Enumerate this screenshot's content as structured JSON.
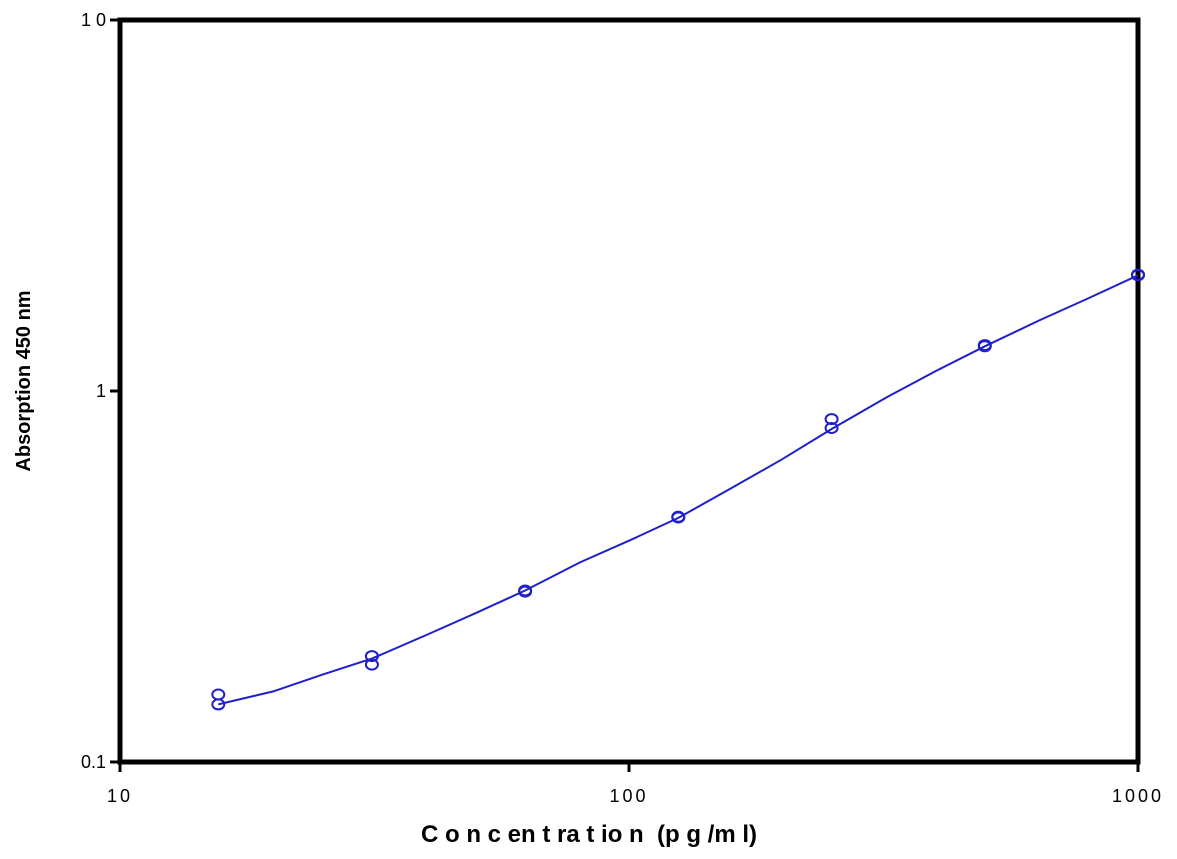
{
  "chart_data": {
    "type": "scatter",
    "title": "",
    "xlabel": "C o n c en t ra t io n  (p g /m l)",
    "ylabel": "Absorption 450 nm",
    "x_scale": "log",
    "y_scale": "log",
    "xlim": [
      10,
      1000
    ],
    "ylim": [
      0.1,
      10
    ],
    "grid": false,
    "legend": "none",
    "x_ticks": [
      {
        "value": 10,
        "label": "10"
      },
      {
        "value": 100,
        "label": "100"
      },
      {
        "value": 1000,
        "label": "1000"
      }
    ],
    "y_ticks": [
      {
        "value": 0.1,
        "label": "0.1"
      },
      {
        "value": 1,
        "label": "1"
      },
      {
        "value": 10,
        "label": "1 0"
      }
    ],
    "series": [
      {
        "kind": "points",
        "marker": "circle-open",
        "x": [
          15.6,
          15.6,
          31.25,
          31.25,
          62.5,
          62.5,
          125,
          125,
          250,
          250,
          500,
          500,
          1000,
          1000
        ],
        "y": [
          0.152,
          0.143,
          0.193,
          0.183,
          0.29,
          0.288,
          0.458,
          0.456,
          0.84,
          0.795,
          1.33,
          1.32,
          2.06,
          2.05
        ]
      },
      {
        "kind": "fit-line",
        "x": [
          15.6,
          20,
          25,
          31.25,
          40,
          50,
          62.5,
          80,
          100,
          125,
          160,
          200,
          250,
          320,
          400,
          500,
          640,
          800,
          1000
        ],
        "y": [
          0.143,
          0.155,
          0.172,
          0.19,
          0.22,
          0.252,
          0.29,
          0.345,
          0.395,
          0.455,
          0.55,
          0.655,
          0.79,
          0.96,
          1.13,
          1.32,
          1.55,
          1.78,
          2.05
        ]
      }
    ],
    "colors": {
      "series": "#2020c8",
      "axes": "#000000"
    }
  }
}
